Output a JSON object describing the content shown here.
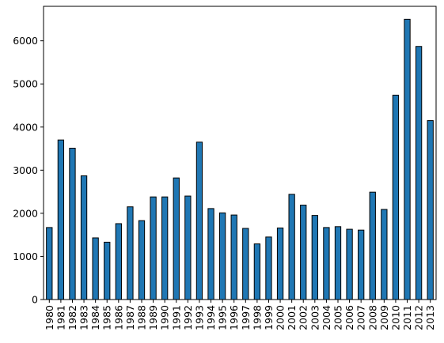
{
  "chart_data": {
    "type": "bar",
    "title": "",
    "xlabel": "",
    "ylabel": "",
    "categories": [
      "1980",
      "1981",
      "1982",
      "1983",
      "1984",
      "1985",
      "1986",
      "1987",
      "1988",
      "1989",
      "1990",
      "1991",
      "1992",
      "1993",
      "1994",
      "1995",
      "1996",
      "1997",
      "1998",
      "1999",
      "2000",
      "2001",
      "2002",
      "2003",
      "2004",
      "2005",
      "2006",
      "2007",
      "2008",
      "2009",
      "2010",
      "2011",
      "2012",
      "2013"
    ],
    "values": [
      1670,
      3700,
      3510,
      2870,
      1430,
      1330,
      1760,
      2150,
      1830,
      2380,
      2380,
      2820,
      2400,
      3650,
      2110,
      2010,
      1960,
      1650,
      1290,
      1450,
      1660,
      2440,
      2190,
      1950,
      1670,
      1690,
      1630,
      1610,
      2490,
      2090,
      4740,
      6500,
      5870,
      4150
    ],
    "ylim": [
      0,
      6800
    ],
    "yticks": [
      0,
      1000,
      2000,
      3000,
      4000,
      5000,
      6000
    ],
    "grid": false,
    "legend": "none",
    "bar_color": "#1f77b4",
    "edge_color": "#000000"
  }
}
